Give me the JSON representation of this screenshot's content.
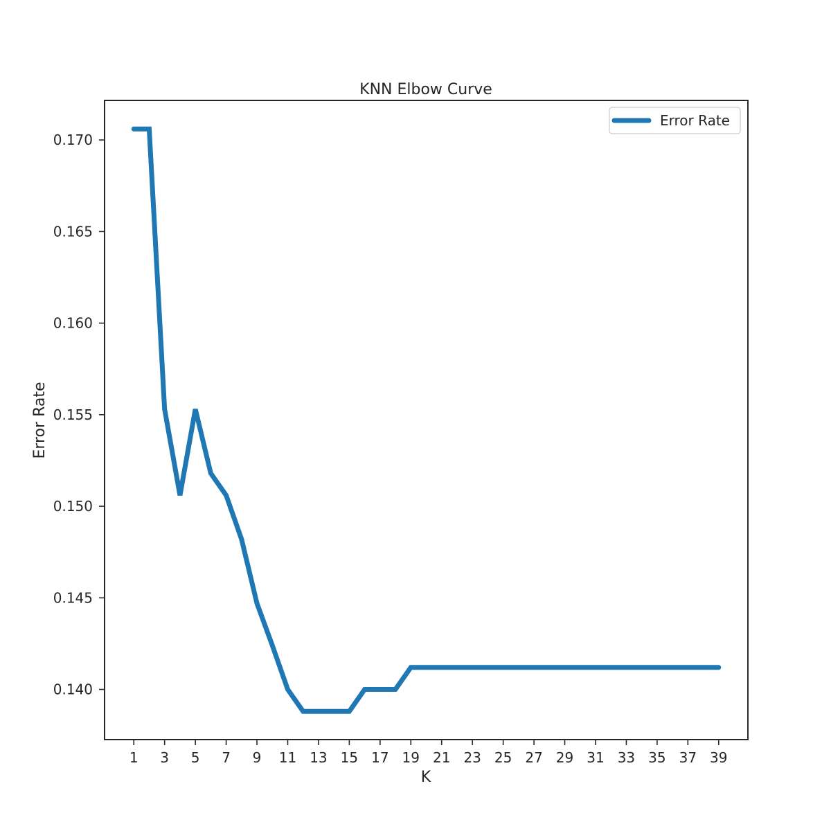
{
  "chart_data": {
    "type": "line",
    "title": "KNN Elbow Curve",
    "xlabel": "K",
    "ylabel": "Error Rate",
    "x": [
      1,
      2,
      3,
      4,
      5,
      6,
      7,
      8,
      9,
      10,
      11,
      12,
      13,
      14,
      15,
      16,
      17,
      18,
      19,
      20,
      21,
      22,
      23,
      24,
      25,
      26,
      27,
      28,
      29,
      30,
      31,
      32,
      33,
      34,
      35,
      36,
      37,
      38,
      39
    ],
    "series": [
      {
        "name": "Error Rate",
        "color": "#1f77b4",
        "values": [
          0.1706,
          0.1706,
          0.1553,
          0.1506,
          0.1553,
          0.1518,
          0.1506,
          0.1482,
          0.1447,
          0.1424,
          0.14,
          0.1388,
          0.1388,
          0.1388,
          0.1388,
          0.14,
          0.14,
          0.14,
          0.1412,
          0.1412,
          0.1412,
          0.1412,
          0.1412,
          0.1412,
          0.1412,
          0.1412,
          0.1412,
          0.1412,
          0.1412,
          0.1412,
          0.1412,
          0.1412,
          0.1412,
          0.1412,
          0.1412,
          0.1412,
          0.1412,
          0.1412,
          0.1412
        ]
      }
    ],
    "xticks": [
      1,
      3,
      5,
      7,
      9,
      11,
      13,
      15,
      17,
      19,
      21,
      23,
      25,
      27,
      29,
      31,
      33,
      35,
      37,
      39
    ],
    "yticks": [
      "0.140",
      "0.145",
      "0.150",
      "0.155",
      "0.160",
      "0.165",
      "0.170"
    ],
    "xlim": [
      -0.9,
      40.9
    ],
    "ylim": [
      0.13726,
      0.17216
    ],
    "grid": false,
    "legend_position": "top-right"
  }
}
